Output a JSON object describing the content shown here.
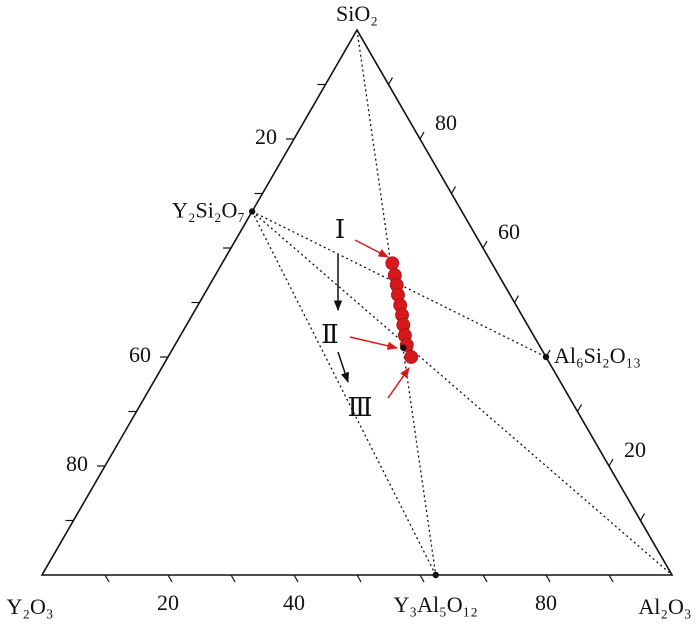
{
  "chart_data": {
    "type": "ternary",
    "compounds": [
      {
        "label": "SiO₂",
        "sio2": 100,
        "al2o3": 0
      },
      {
        "label": "Y₂O₃",
        "sio2": 0,
        "al2o3": 0
      },
      {
        "label": "Al₂O₃",
        "sio2": 0,
        "al2o3": 100
      },
      {
        "label": "Y₂Si₂O₇",
        "sio2": 66.7,
        "al2o3": 0
      },
      {
        "label": "Al₆Si₂O₁₃",
        "sio2": 40,
        "al2o3": 60
      },
      {
        "label": "Y₃Al₅O₁₂",
        "sio2": 0,
        "al2o3": 62.5
      }
    ],
    "axes": {
      "y2o3": {
        "ticks": [
          10,
          20,
          30,
          40,
          50,
          60,
          70,
          80,
          90
        ],
        "labels": [
          20,
          60,
          80
        ]
      },
      "sio2": {
        "ticks": [
          10,
          20,
          30,
          40,
          50,
          60,
          70,
          80,
          90
        ],
        "labels": [
          80,
          60,
          20
        ]
      },
      "al2o3": {
        "ticks": [
          10,
          20,
          30,
          40,
          50,
          60,
          70,
          80,
          90
        ],
        "labels": [
          20,
          40,
          80
        ]
      }
    },
    "points": {
      "color": "#d7191c",
      "sio2": [
        57.2,
        55.0,
        53.2,
        51.4,
        49.5,
        47.7,
        45.9,
        44.0,
        42.2,
        40.0
      ],
      "al2o3": [
        27.0,
        28.5,
        29.7,
        30.8,
        32.1,
        33.3,
        34.4,
        35.6,
        36.8,
        38.6
      ]
    },
    "marker": {
      "sio2": 41.7,
      "al2o3": 36.5
    },
    "annotations": [
      "Ⅰ",
      "Ⅱ",
      "Ⅲ"
    ]
  }
}
